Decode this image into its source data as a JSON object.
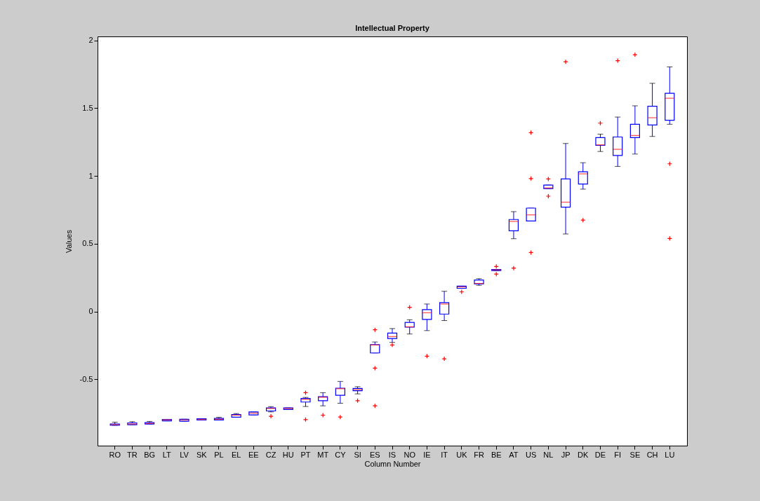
{
  "chart_data": {
    "type": "box",
    "title": "Intellectual Property",
    "xlabel": "Column Number",
    "ylabel": "Values",
    "categories": [
      "RO",
      "TR",
      "BG",
      "LT",
      "LV",
      "SK",
      "PL",
      "EL",
      "EE",
      "CZ",
      "HU",
      "PT",
      "MT",
      "CY",
      "SI",
      "ES",
      "IS",
      "NO",
      "IE",
      "IT",
      "UK",
      "FR",
      "BE",
      "AT",
      "US",
      "NL",
      "JP",
      "DK",
      "DE",
      "FI",
      "SE",
      "CH",
      "LU"
    ],
    "ylim": [
      -0.99,
      2.03
    ],
    "yticks": [
      -0.5,
      0,
      0.5,
      1,
      1.5,
      2
    ],
    "color": "#0000ff",
    "marker": "cross",
    "boxes": [
      {
        "low": -0.84,
        "q1": -0.84,
        "median": -0.835,
        "q3": -0.83,
        "high": -0.817
      },
      {
        "low": -0.835,
        "q1": -0.835,
        "median": -0.83,
        "q3": -0.822,
        "high": -0.813
      },
      {
        "low": -0.83,
        "q1": -0.83,
        "median": -0.826,
        "q3": -0.82,
        "high": -0.811
      },
      {
        "low": -0.807,
        "q1": -0.807,
        "median": -0.8,
        "q3": -0.796,
        "high": -0.796
      },
      {
        "low": -0.81,
        "q1": -0.81,
        "median": -0.8,
        "q3": -0.795,
        "high": -0.795
      },
      {
        "low": -0.801,
        "q1": -0.801,
        "median": -0.797,
        "q3": -0.791,
        "high": -0.791
      },
      {
        "low": -0.801,
        "q1": -0.801,
        "median": -0.795,
        "q3": -0.789,
        "high": -0.781
      },
      {
        "low": -0.78,
        "q1": -0.78,
        "median": -0.765,
        "q3": -0.76,
        "high": -0.753
      },
      {
        "low": -0.763,
        "q1": -0.763,
        "median": -0.75,
        "q3": -0.741,
        "high": -0.741
      },
      {
        "low": -0.741,
        "q1": -0.734,
        "median": -0.716,
        "q3": -0.711,
        "high": -0.702,
        "outliers": [
          -0.773
        ]
      },
      {
        "low": -0.723,
        "q1": -0.723,
        "median": -0.716,
        "q3": -0.711,
        "high": -0.711
      },
      {
        "low": -0.701,
        "q1": -0.668,
        "median": -0.649,
        "q3": -0.642,
        "high": -0.634,
        "outliers": [
          -0.599,
          -0.798
        ]
      },
      {
        "low": -0.696,
        "q1": -0.658,
        "median": -0.633,
        "q3": -0.629,
        "high": -0.599,
        "outliers": [
          -0.765
        ]
      },
      {
        "low": -0.677,
        "q1": -0.618,
        "median": -0.57,
        "q3": -0.566,
        "high": -0.516,
        "outliers": [
          -0.779
        ]
      },
      {
        "low": -0.608,
        "q1": -0.585,
        "median": -0.576,
        "q3": -0.568,
        "high": -0.555,
        "outliers": [
          -0.658
        ]
      },
      {
        "low": -0.306,
        "q1": -0.306,
        "median": -0.247,
        "q3": -0.244,
        "high": -0.225,
        "outliers": [
          -0.135,
          -0.418,
          -0.696
        ]
      },
      {
        "low": -0.228,
        "q1": -0.199,
        "median": -0.185,
        "q3": -0.159,
        "high": -0.126,
        "outliers": [
          -0.247
        ]
      },
      {
        "low": -0.166,
        "q1": -0.116,
        "median": -0.113,
        "q3": -0.081,
        "high": -0.061,
        "outliers": [
          0.031
        ]
      },
      {
        "low": -0.141,
        "q1": -0.059,
        "median": -0.009,
        "q3": 0.014,
        "high": 0.055,
        "outliers": [
          -0.33
        ]
      },
      {
        "low": -0.067,
        "q1": -0.019,
        "median": 0.055,
        "q3": 0.066,
        "high": 0.149,
        "outliers": [
          -0.349
        ]
      },
      {
        "low": 0.171,
        "q1": 0.171,
        "median": 0.181,
        "q3": 0.187,
        "high": 0.187,
        "outliers": [
          0.145
        ]
      },
      {
        "low": 0.193,
        "q1": 0.204,
        "median": 0.207,
        "q3": 0.232,
        "high": 0.242
      },
      {
        "low": 0.302,
        "q1": 0.302,
        "median": 0.307,
        "q3": 0.31,
        "high": 0.31,
        "outliers": [
          0.332,
          0.276
        ]
      },
      {
        "low": 0.537,
        "q1": 0.596,
        "median": 0.665,
        "q3": 0.679,
        "high": 0.737,
        "outliers": [
          0.32
        ]
      },
      {
        "low": 0.668,
        "q1": 0.668,
        "median": 0.713,
        "q3": 0.763,
        "high": 0.763,
        "outliers": [
          1.32,
          0.981,
          0.435
        ]
      },
      {
        "low": 0.907,
        "q1": 0.907,
        "median": 0.912,
        "q3": 0.933,
        "high": 0.933,
        "outliers": [
          0.978,
          0.851
        ]
      },
      {
        "low": 0.572,
        "q1": 0.77,
        "median": 0.807,
        "q3": 0.978,
        "high": 1.24,
        "outliers": [
          1.843
        ]
      },
      {
        "low": 0.903,
        "q1": 0.941,
        "median": 1.016,
        "q3": 1.031,
        "high": 1.098,
        "outliers": [
          0.674
        ]
      },
      {
        "low": 1.181,
        "q1": 1.226,
        "median": 1.23,
        "q3": 1.283,
        "high": 1.309,
        "outliers": [
          1.39
        ]
      },
      {
        "low": 1.071,
        "q1": 1.152,
        "median": 1.197,
        "q3": 1.288,
        "high": 1.435,
        "outliers": [
          1.851
        ]
      },
      {
        "low": 1.162,
        "q1": 1.283,
        "median": 1.299,
        "q3": 1.382,
        "high": 1.518,
        "outliers": [
          1.895
        ]
      },
      {
        "low": 1.292,
        "q1": 1.377,
        "median": 1.43,
        "q3": 1.515,
        "high": 1.684
      },
      {
        "low": 1.382,
        "q1": 1.411,
        "median": 1.574,
        "q3": 1.61,
        "high": 1.805,
        "outliers": [
          1.09,
          0.539
        ]
      }
    ]
  }
}
